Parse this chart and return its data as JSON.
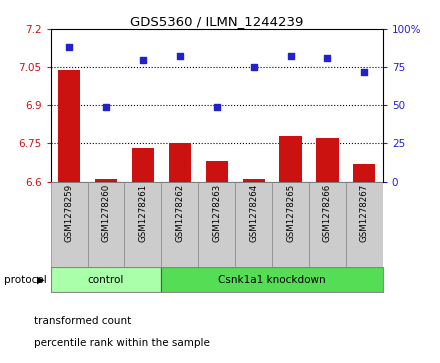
{
  "title": "GDS5360 / ILMN_1244239",
  "samples": [
    "GSM1278259",
    "GSM1278260",
    "GSM1278261",
    "GSM1278262",
    "GSM1278263",
    "GSM1278264",
    "GSM1278265",
    "GSM1278266",
    "GSM1278267"
  ],
  "transformed_count": [
    7.04,
    6.61,
    6.73,
    6.75,
    6.68,
    6.61,
    6.78,
    6.77,
    6.67
  ],
  "percentile_rank": [
    88,
    49,
    80,
    82,
    49,
    75,
    82,
    81,
    72
  ],
  "ylim_left": [
    6.6,
    7.2
  ],
  "ylim_right": [
    0,
    100
  ],
  "yticks_left": [
    6.6,
    6.75,
    6.9,
    7.05,
    7.2
  ],
  "yticks_right": [
    0,
    25,
    50,
    75,
    100
  ],
  "bar_color": "#cc1111",
  "dot_color": "#2222cc",
  "grid_values": [
    6.75,
    6.9,
    7.05
  ],
  "control_samples": 3,
  "knockdown_samples": 6,
  "control_label": "control",
  "knockdown_label": "Csnk1a1 knockdown",
  "protocol_label": "protocol",
  "legend_bar_label": "transformed count",
  "legend_dot_label": "percentile rank within the sample",
  "control_color": "#aaffaa",
  "knockdown_color": "#55dd55",
  "bg_color": "#cccccc",
  "bar_width": 0.6
}
